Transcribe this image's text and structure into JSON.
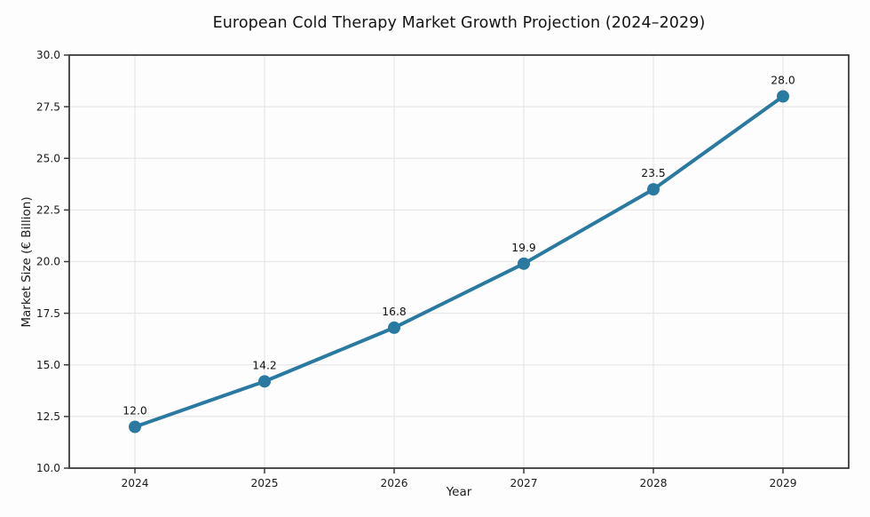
{
  "figure": {
    "background": "#fdfdfd"
  },
  "chart_data": {
    "type": "line",
    "title": "European Cold Therapy Market Growth Projection (2024–2029)",
    "xlabel": "Year",
    "ylabel": "Market Size (€ Billion)",
    "categories": [
      "2024",
      "2025",
      "2026",
      "2027",
      "2028",
      "2029"
    ],
    "values": [
      12.0,
      14.2,
      16.8,
      19.9,
      23.5,
      28.0
    ],
    "point_labels": [
      "12.0",
      "14.2",
      "16.8",
      "19.9",
      "23.5",
      "28.0"
    ],
    "ylim": [
      10.0,
      30.0
    ],
    "yticks": [
      10.0,
      12.5,
      15.0,
      17.5,
      20.0,
      22.5,
      25.0,
      27.5,
      30.0
    ],
    "ytick_labels": [
      "10.0",
      "12.5",
      "15.0",
      "17.5",
      "20.0",
      "22.5",
      "25.0",
      "27.5",
      "30.0"
    ],
    "grid": true,
    "legend": null,
    "colors": {
      "line": "#2a79a1",
      "marker": "#2a79a1",
      "grid": "#e7e7e7",
      "spine": "#3a3a3a",
      "tick_text": "#1c1c1c",
      "label_text": "#111111"
    }
  }
}
